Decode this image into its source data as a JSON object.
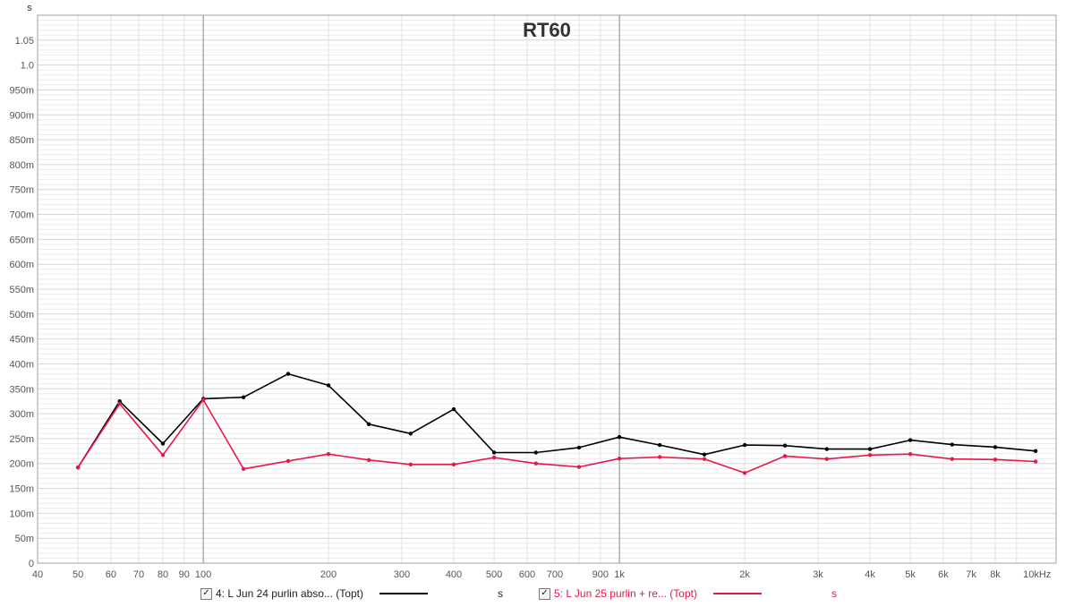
{
  "chart_data": {
    "type": "line",
    "title": "RT60",
    "ylabel": "s",
    "xscale": "log",
    "xlim": [
      40,
      11200
    ],
    "ylim": [
      0,
      1.1
    ],
    "grid": true,
    "x_ticks": [
      {
        "v": 40,
        "label": "40"
      },
      {
        "v": 50,
        "label": "50"
      },
      {
        "v": 60,
        "label": "60"
      },
      {
        "v": 70,
        "label": "70"
      },
      {
        "v": 80,
        "label": "80"
      },
      {
        "v": 90,
        "label": "90"
      },
      {
        "v": 100,
        "label": "100"
      },
      {
        "v": 200,
        "label": "200"
      },
      {
        "v": 300,
        "label": "300"
      },
      {
        "v": 400,
        "label": "400"
      },
      {
        "v": 500,
        "label": "500"
      },
      {
        "v": 600,
        "label": "600"
      },
      {
        "v": 700,
        "label": "700"
      },
      {
        "v": 900,
        "label": "900"
      },
      {
        "v": 1000,
        "label": "1k"
      },
      {
        "v": 2000,
        "label": "2k"
      },
      {
        "v": 3000,
        "label": "3k"
      },
      {
        "v": 4000,
        "label": "4k"
      },
      {
        "v": 5000,
        "label": "5k"
      },
      {
        "v": 6000,
        "label": "6k"
      },
      {
        "v": 7000,
        "label": "7k"
      },
      {
        "v": 8000,
        "label": "8k"
      },
      {
        "v": 10000,
        "label": "10kHz"
      }
    ],
    "y_ticks": [
      {
        "v": 0,
        "label": "0"
      },
      {
        "v": 0.05,
        "label": "50m"
      },
      {
        "v": 0.1,
        "label": "100m"
      },
      {
        "v": 0.15,
        "label": "150m"
      },
      {
        "v": 0.2,
        "label": "200m"
      },
      {
        "v": 0.25,
        "label": "250m"
      },
      {
        "v": 0.3,
        "label": "300m"
      },
      {
        "v": 0.35,
        "label": "350m"
      },
      {
        "v": 0.4,
        "label": "400m"
      },
      {
        "v": 0.45,
        "label": "450m"
      },
      {
        "v": 0.5,
        "label": "500m"
      },
      {
        "v": 0.55,
        "label": "550m"
      },
      {
        "v": 0.6,
        "label": "600m"
      },
      {
        "v": 0.65,
        "label": "650m"
      },
      {
        "v": 0.7,
        "label": "700m"
      },
      {
        "v": 0.75,
        "label": "750m"
      },
      {
        "v": 0.8,
        "label": "800m"
      },
      {
        "v": 0.85,
        "label": "850m"
      },
      {
        "v": 0.9,
        "label": "900m"
      },
      {
        "v": 0.95,
        "label": "950m"
      },
      {
        "v": 1.0,
        "label": "1.0"
      },
      {
        "v": 1.05,
        "label": "1.05"
      }
    ],
    "x": [
      50,
      63,
      80,
      100,
      125,
      160,
      200,
      250,
      315,
      400,
      500,
      630,
      800,
      1000,
      1250,
      1600,
      2000,
      2500,
      3150,
      4000,
      5000,
      6300,
      8000,
      10000
    ],
    "series": [
      {
        "name": "4: L Jun 24 purlin abso... (Topt)",
        "unit": "s",
        "color": "#000000",
        "values": [
          0.192,
          0.325,
          0.24,
          0.33,
          0.333,
          0.38,
          0.357,
          0.279,
          0.26,
          0.309,
          0.222,
          0.222,
          0.232,
          0.253,
          0.237,
          0.218,
          0.237,
          0.236,
          0.229,
          0.229,
          0.247,
          0.238,
          0.233,
          0.225
        ]
      },
      {
        "name": "5: L Jun 25  purlin + re... (Topt)",
        "unit": "s",
        "color": "#e8174a",
        "values": [
          0.192,
          0.32,
          0.217,
          0.328,
          0.189,
          0.205,
          0.219,
          0.207,
          0.198,
          0.198,
          0.212,
          0.2,
          0.193,
          0.21,
          0.213,
          0.209,
          0.181,
          0.215,
          0.209,
          0.217,
          0.219,
          0.209,
          0.208,
          0.204
        ]
      }
    ]
  }
}
